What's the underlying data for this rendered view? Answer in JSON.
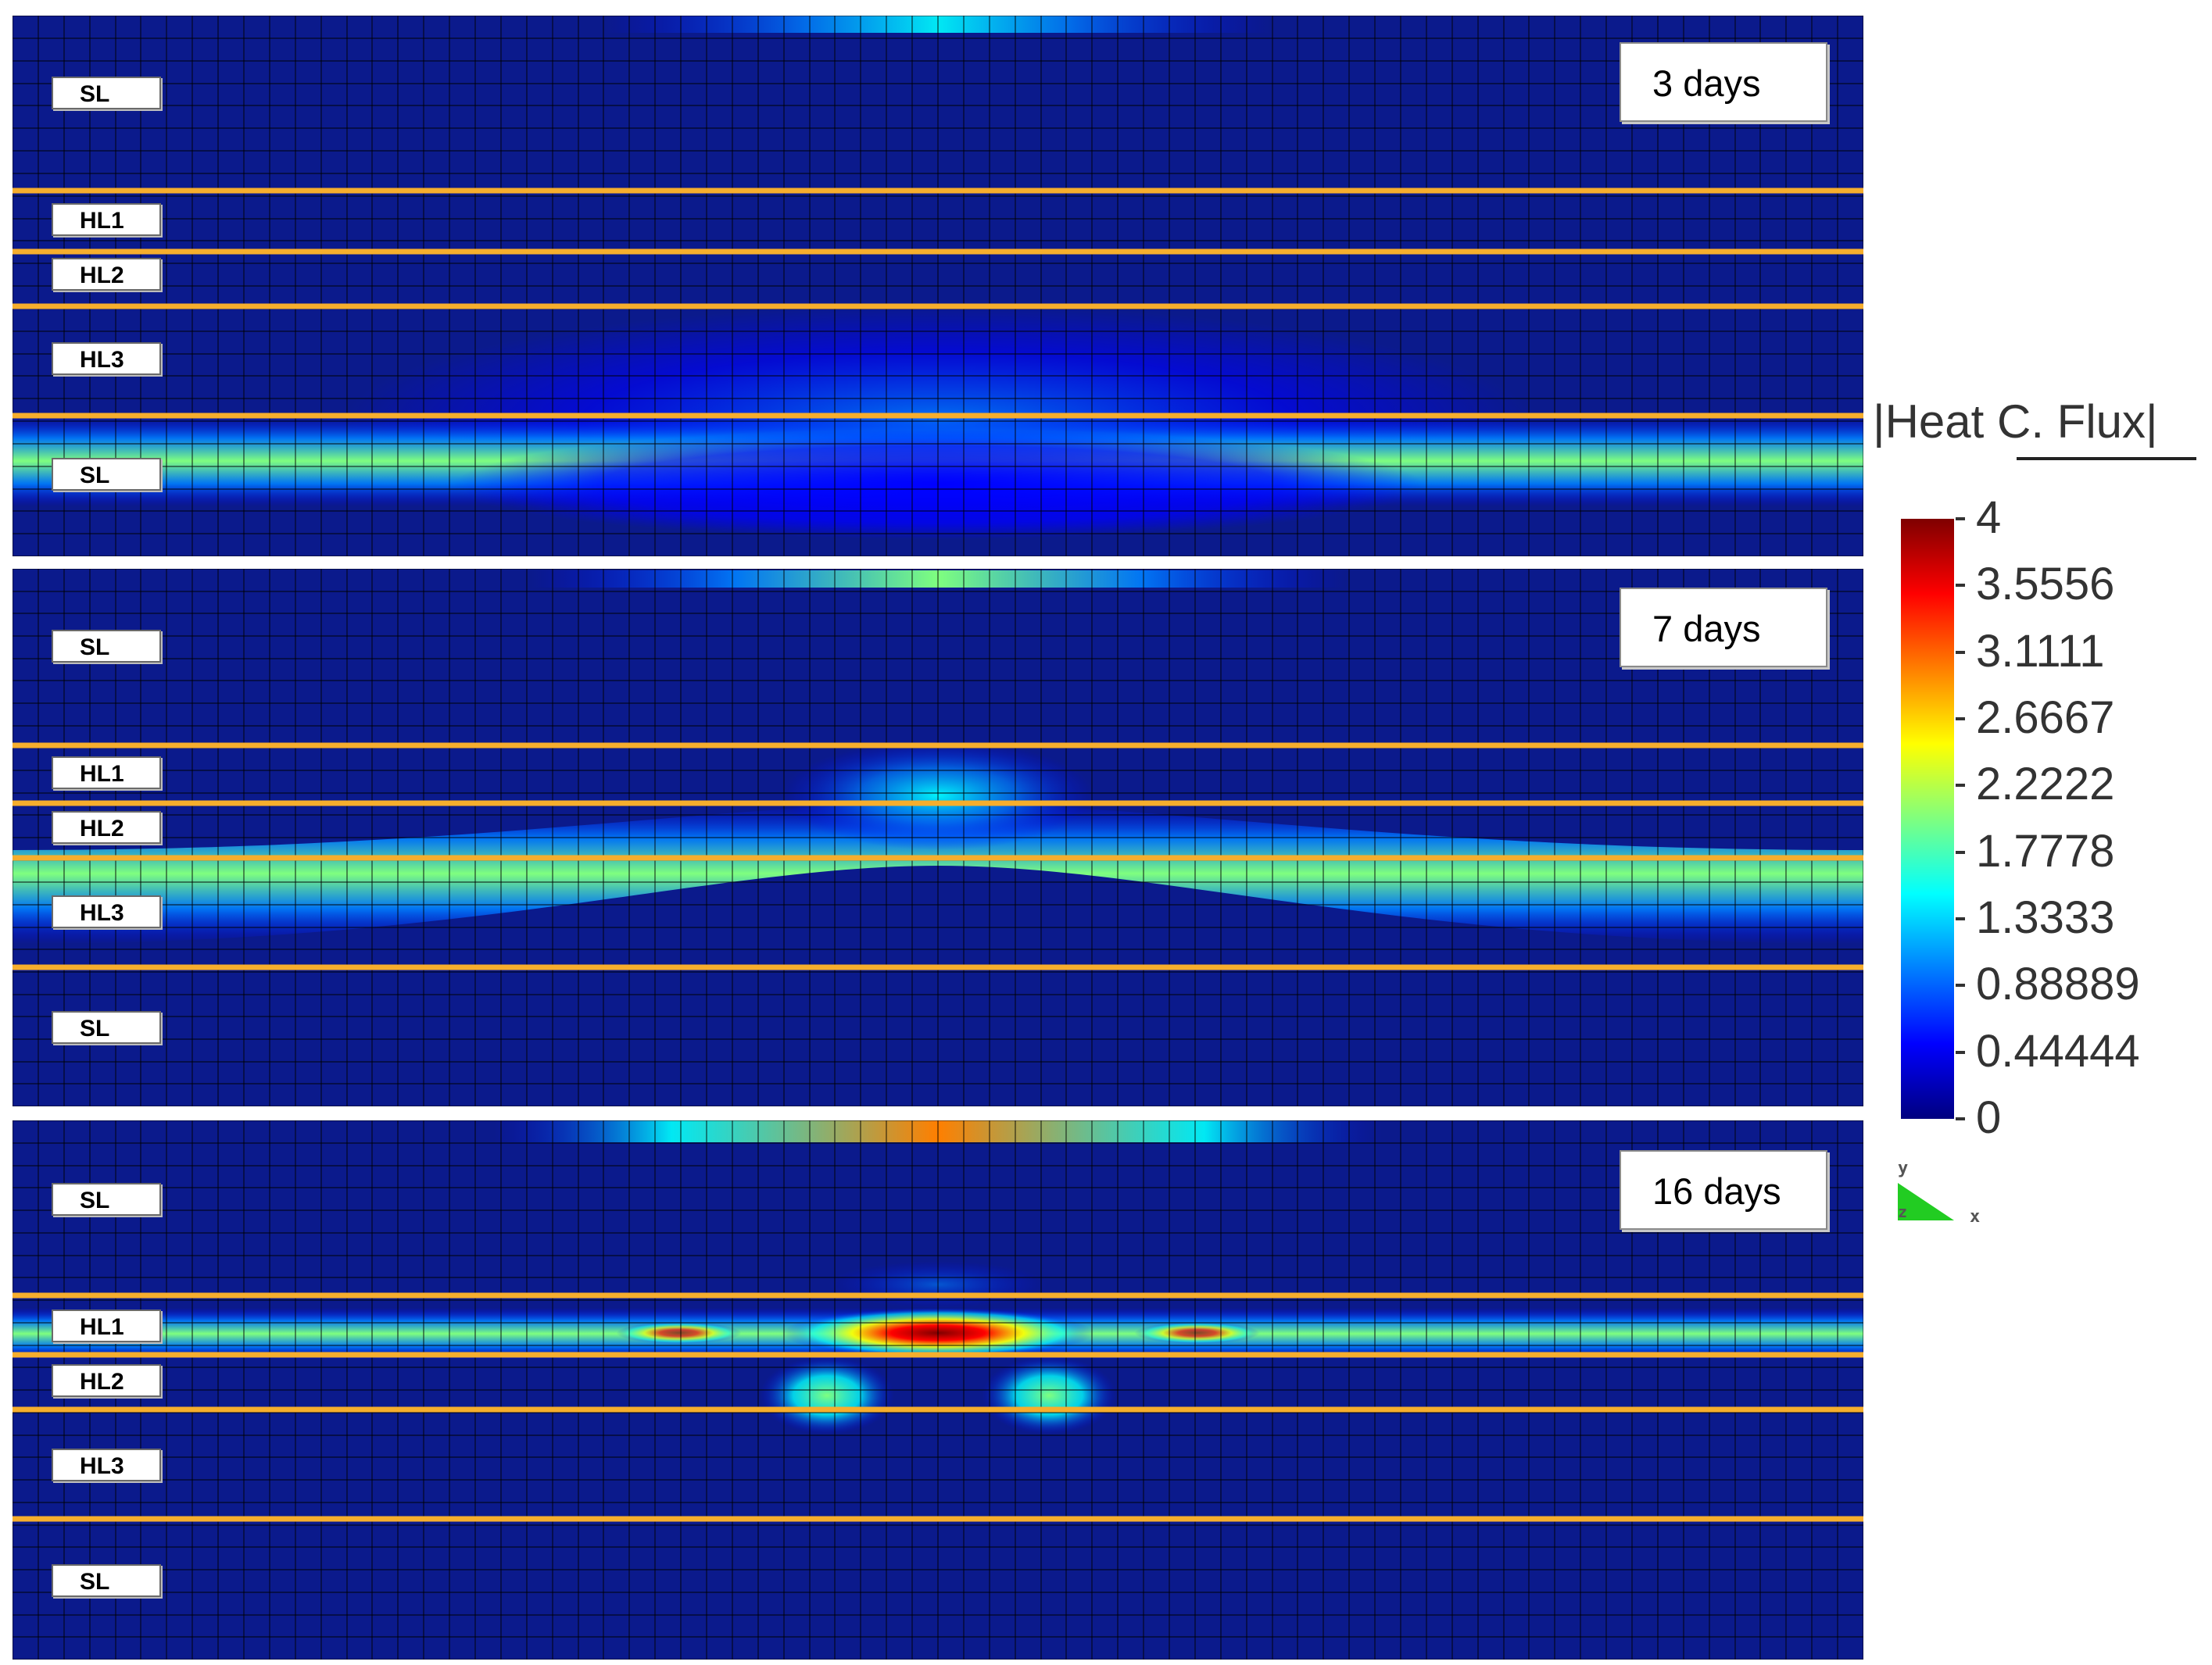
{
  "panels": [
    {
      "time_label": "3 days",
      "layers": [
        "SL",
        "HL1",
        "HL2",
        "HL3",
        "SL"
      ],
      "flux_pattern": "max in bottom SL, arched band rising to interface under HL3"
    },
    {
      "time_label": "7 days",
      "layers": [
        "SL",
        "HL1",
        "HL2",
        "HL3",
        "SL"
      ],
      "flux_pattern": "max in HL3, arched band rising into HL1/HL2 at centre"
    },
    {
      "time_label": "16 days",
      "layers": [
        "SL",
        "HL1",
        "HL2",
        "HL3",
        "SL"
      ],
      "flux_pattern": "max in HL1 at centre, two hot lobes below in HL2"
    }
  ],
  "legend": {
    "title": "|Heat C. Flux|",
    "min": 0,
    "max": 4,
    "ticks": [
      "4",
      "3.5556",
      "3.1111",
      "2.6667",
      "2.2222",
      "1.7778",
      "1.3333",
      "0.88889",
      "0.44444",
      "0"
    ],
    "colormap": [
      "#00007f",
      "#0000ff",
      "#007fff",
      "#00ffff",
      "#7fff7f",
      "#ffff00",
      "#ff7f00",
      "#ff0000",
      "#7f0000"
    ]
  },
  "triad": {
    "y": "y",
    "z": "z",
    "x": "x"
  },
  "colors": {
    "background_field": "#0b1a8c",
    "interface_lines": "#f6ae2d",
    "mesh": "#000000"
  }
}
